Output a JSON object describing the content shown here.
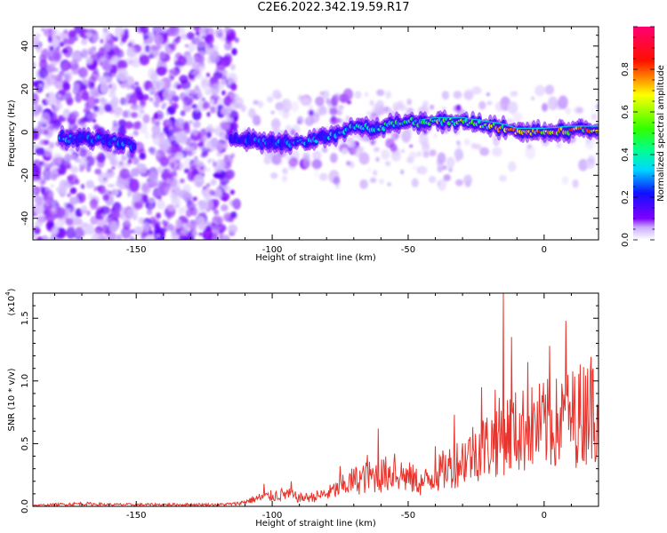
{
  "title": "C2E6.2022.342.19.59.R17",
  "chart_data": [
    {
      "type": "heatmap",
      "title": "",
      "xlabel": "Height of straight line (km)",
      "ylabel": "Frequency (Hz)",
      "xlim": [
        -188,
        20
      ],
      "ylim": [
        -50,
        49
      ],
      "xticks": [
        -150,
        -100,
        -50,
        0
      ],
      "yticks": [
        -40,
        -20,
        0,
        20,
        40
      ],
      "colorbar": {
        "label": "Normalized spectral amplitude",
        "range": [
          0,
          1
        ],
        "ticks": [
          0.0,
          0.2,
          0.4,
          0.6,
          0.8
        ],
        "tick_labels": [
          "0.0",
          "0.2",
          "0.4",
          "0.6",
          "0.8"
        ],
        "colors": [
          "#ffffff",
          "#8000ff",
          "#0000ff",
          "#00ffff",
          "#00ff00",
          "#ffff00",
          "#ff0000",
          "#ff0080"
        ]
      },
      "ridge": {
        "x": [
          -175,
          -165,
          -155,
          -150,
          -112,
          -100,
          -90,
          -80,
          -70,
          -60,
          -50,
          -45,
          -40,
          -30,
          -20,
          -15,
          -10,
          0,
          10,
          20
        ],
        "y": [
          -3,
          -3,
          -5,
          -6,
          -3,
          -5,
          -5,
          -2,
          2,
          2,
          6,
          4,
          5,
          5,
          3,
          2,
          0,
          0,
          1,
          1
        ],
        "amplitude": [
          0.3,
          0.3,
          0.3,
          0.25,
          0.25,
          0.3,
          0.32,
          0.35,
          0.4,
          0.45,
          0.5,
          0.55,
          0.6,
          0.65,
          0.7,
          0.75,
          0.8,
          0.85,
          0.85,
          0.85
        ]
      }
    },
    {
      "type": "line",
      "title": "",
      "xlabel": "Height of straight line (km)",
      "ylabel": "SNR (10 * v/v)",
      "scale_label": "(x10",
      "scale_exponent": "4",
      "xlim": [
        -188,
        20
      ],
      "ylim": [
        0,
        1.7
      ],
      "xticks": [
        -150,
        -100,
        -50,
        0
      ],
      "yticks": [
        0.0,
        0.5,
        1.0,
        1.5
      ],
      "ytick_labels": [
        "0.0",
        "0.5",
        "1.0",
        "1.5"
      ],
      "series": [
        {
          "color": "#e8342c",
          "x": [
            -188,
            -180,
            -170,
            -160,
            -150,
            -140,
            -130,
            -120,
            -112,
            -105,
            -100,
            -95,
            -90,
            -85,
            -80,
            -75,
            -70,
            -65,
            -60,
            -55,
            -50,
            -45,
            -40,
            -35,
            -30,
            -25,
            -20,
            -15,
            -10,
            -5,
            0,
            5,
            10,
            15,
            20
          ],
          "y": [
            0.01,
            0.02,
            0.03,
            0.02,
            0.02,
            0.02,
            0.02,
            0.02,
            0.03,
            0.08,
            0.1,
            0.12,
            0.08,
            0.09,
            0.12,
            0.18,
            0.25,
            0.28,
            0.3,
            0.33,
            0.28,
            0.22,
            0.3,
            0.38,
            0.45,
            0.55,
            0.6,
            0.7,
            0.72,
            0.75,
            0.78,
            0.8,
            0.85,
            0.92,
            1.02
          ],
          "peaks": [
            {
              "x": -103,
              "y": 0.18
            },
            {
              "x": -93,
              "y": 0.2
            },
            {
              "x": -75,
              "y": 0.32
            },
            {
              "x": -65,
              "y": 0.41
            },
            {
              "x": -61,
              "y": 0.62
            },
            {
              "x": -55,
              "y": 0.42
            },
            {
              "x": -40,
              "y": 0.48
            },
            {
              "x": -33,
              "y": 0.73
            },
            {
              "x": -23,
              "y": 0.95
            },
            {
              "x": -18,
              "y": 0.93
            },
            {
              "x": -15,
              "y": 1.7
            },
            {
              "x": -12,
              "y": 1.35
            },
            {
              "x": -6,
              "y": 1.15
            },
            {
              "x": 2,
              "y": 1.28
            },
            {
              "x": 8,
              "y": 1.48
            },
            {
              "x": 16,
              "y": 1.1
            }
          ]
        }
      ]
    }
  ]
}
